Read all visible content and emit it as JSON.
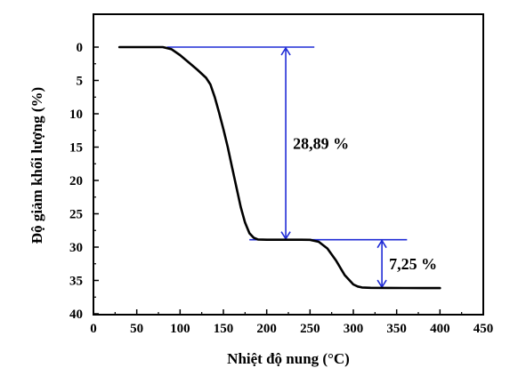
{
  "chart_data": {
    "type": "line",
    "xlabel": "Nhiệt độ nung (°C)",
    "ylabel": "Độ giảm khối lượng (%)",
    "xlim": [
      0,
      450
    ],
    "ylim": [
      0,
      40
    ],
    "y_inverted": true,
    "x_ticks": [
      0,
      50,
      100,
      150,
      200,
      250,
      300,
      350,
      400,
      450
    ],
    "y_ticks": [
      0,
      5,
      10,
      15,
      20,
      25,
      30,
      35,
      40
    ],
    "grid": false,
    "line_color": "#000000",
    "annotation_color": "#1f2bd6",
    "series": [
      {
        "x": [
          30,
          60,
          80,
          90,
          100,
          110,
          120,
          130,
          135,
          140,
          145,
          150,
          155,
          160,
          165,
          170,
          175,
          180,
          185,
          190,
          200,
          220,
          240,
          250,
          260,
          270,
          280,
          290,
          300,
          305,
          310,
          320,
          340,
          360,
          380,
          400
        ],
        "y": [
          0,
          0,
          0,
          0.3,
          1.2,
          2.3,
          3.4,
          4.6,
          5.6,
          7.5,
          9.8,
          12.3,
          15,
          18,
          21,
          24,
          26.3,
          27.9,
          28.6,
          28.85,
          28.89,
          28.89,
          28.89,
          28.9,
          29.2,
          30.2,
          32,
          34.2,
          35.6,
          35.9,
          36.05,
          36.1,
          36.12,
          36.13,
          36.14,
          36.14
        ]
      }
    ],
    "annotations": [
      {
        "label": "28,89 %",
        "from_y": 0,
        "to_y": 28.89,
        "arrow_x": 222
      },
      {
        "label": "7,25 %",
        "from_y": 28.89,
        "to_y": 36.14,
        "arrow_x": 333
      }
    ],
    "reference_lines": [
      {
        "y": 0,
        "x_from": 85,
        "x_to": 255
      },
      {
        "y": 28.89,
        "x_from": 180,
        "x_to": 362
      },
      {
        "y": 36.14,
        "x_from": 320,
        "x_to": 345
      }
    ]
  }
}
